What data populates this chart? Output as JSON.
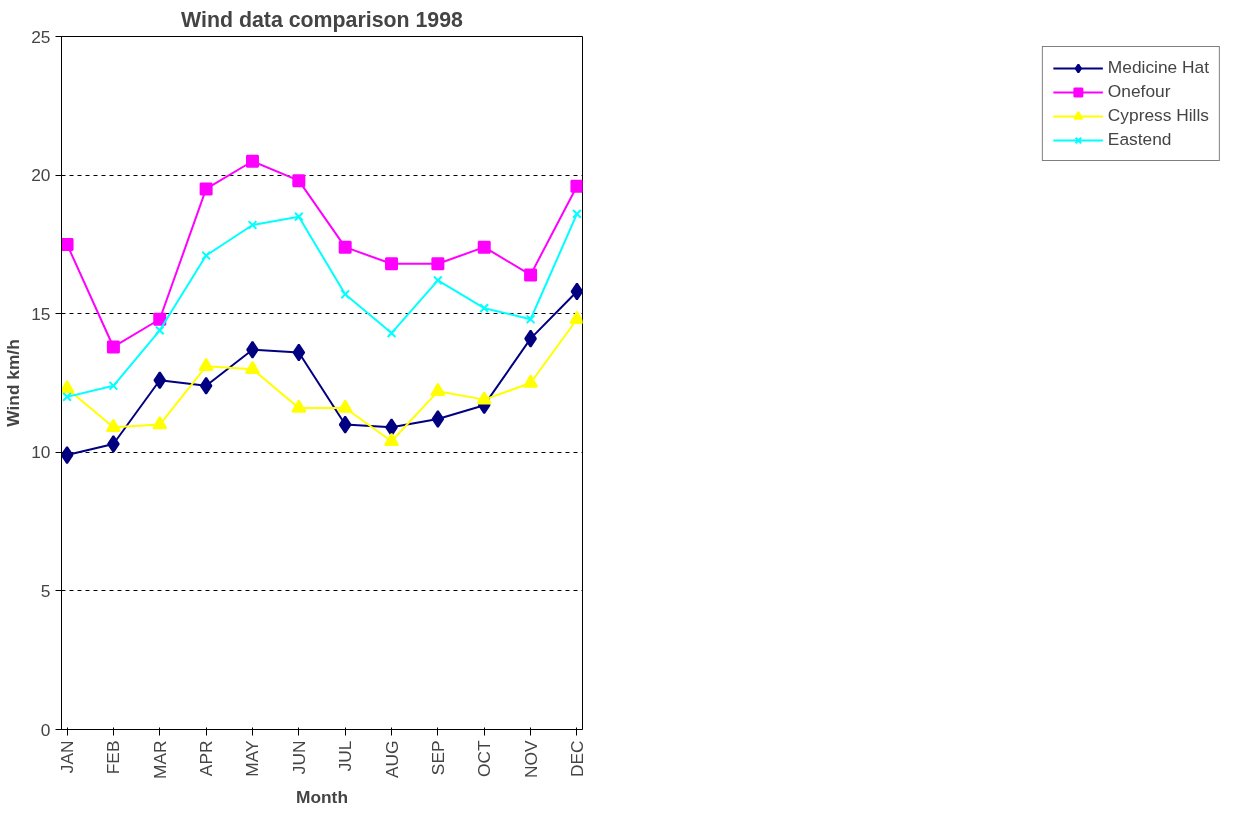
{
  "chart_data": {
    "type": "line",
    "title": "Wind data comparison 1998",
    "xlabel": "Month",
    "ylabel": "Wind km/h",
    "categories": [
      "JAN",
      "FEB",
      "MAR",
      "APR",
      "MAY",
      "JUN",
      "JUL",
      "AUG",
      "SEP",
      "OCT",
      "NOV",
      "DEC"
    ],
    "series": [
      {
        "name": "Medicine Hat",
        "color": "#000080",
        "marker": "diamond",
        "values": [
          9.9,
          10.3,
          12.6,
          12.4,
          13.7,
          13.6,
          11.0,
          10.9,
          11.2,
          11.7,
          14.1,
          15.8
        ]
      },
      {
        "name": "Onefour",
        "color": "#ff00ff",
        "marker": "square",
        "values": [
          17.5,
          13.8,
          14.8,
          19.5,
          20.5,
          19.8,
          17.4,
          16.8,
          16.8,
          17.4,
          16.4,
          19.6
        ]
      },
      {
        "name": "Cypress Hills",
        "color": "#ffff00",
        "marker": "triangle",
        "values": [
          12.3,
          10.9,
          11.0,
          13.1,
          13.0,
          11.6,
          11.6,
          10.4,
          12.2,
          11.9,
          12.5,
          14.8
        ]
      },
      {
        "name": "Eastend",
        "color": "#00ffff",
        "marker": "cross",
        "values": [
          12.0,
          12.4,
          14.4,
          17.1,
          18.2,
          18.5,
          15.7,
          14.3,
          16.2,
          15.2,
          14.8,
          18.6
        ]
      }
    ],
    "ylim": [
      0,
      25
    ],
    "yticks": [
      0,
      5,
      10,
      15,
      20,
      25
    ],
    "grid": "y",
    "legend": "right",
    "line_style": "solid"
  }
}
